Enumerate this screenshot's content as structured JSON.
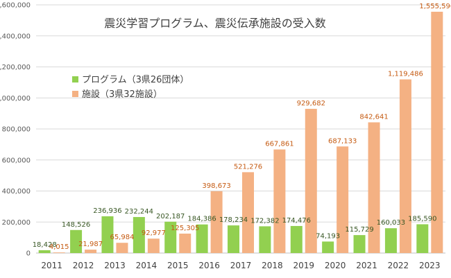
{
  "chart_data": {
    "type": "bar",
    "title": "震災学習プログラム、震災伝承施設の受入数",
    "categories": [
      "2011",
      "2012",
      "2013",
      "2014",
      "2015",
      "2016",
      "2017",
      "2018",
      "2019",
      "2020",
      "2021",
      "2022",
      "2023"
    ],
    "series": [
      {
        "name": "プログラム（3県26団体）",
        "color": "#92d050",
        "label_color": "#375623",
        "values": [
          18428,
          148526,
          236936,
          232244,
          202187,
          184386,
          178234,
          172382,
          174476,
          74193,
          115729,
          160033,
          185590
        ],
        "labels": [
          "18,428",
          "148,526",
          "236,936",
          "232,244",
          "202,187",
          "184,386",
          "178,234",
          "172,382",
          "174,476",
          "74,193",
          "115,729",
          "160,033",
          "185,590"
        ]
      },
      {
        "name": "施設（3県32施設）",
        "color": "#f4b183",
        "label_color": "#c55a11",
        "values": [
          4015,
          21987,
          65984,
          92977,
          125305,
          398673,
          521276,
          667861,
          929682,
          687133,
          842641,
          1119486,
          1555596
        ],
        "labels": [
          "4,015",
          "21,987",
          "65,984",
          "92,977",
          "125,305",
          "398,673",
          "521,276",
          "667,861",
          "929,682",
          "687,133",
          "842,641",
          "1,119,486",
          "1,555,596"
        ]
      }
    ],
    "ylim": [
      0,
      1600000
    ],
    "yticks": [
      0,
      200000,
      400000,
      600000,
      800000,
      1000000,
      1200000,
      1400000,
      1600000
    ],
    "ytick_labels": [
      "0",
      "200,000",
      "400,000",
      "600,000",
      "800,000",
      "1,000,000",
      "1,200,000",
      "1,400,000",
      "1,600,000"
    ],
    "grid": true,
    "legend_position": "upper-left"
  }
}
